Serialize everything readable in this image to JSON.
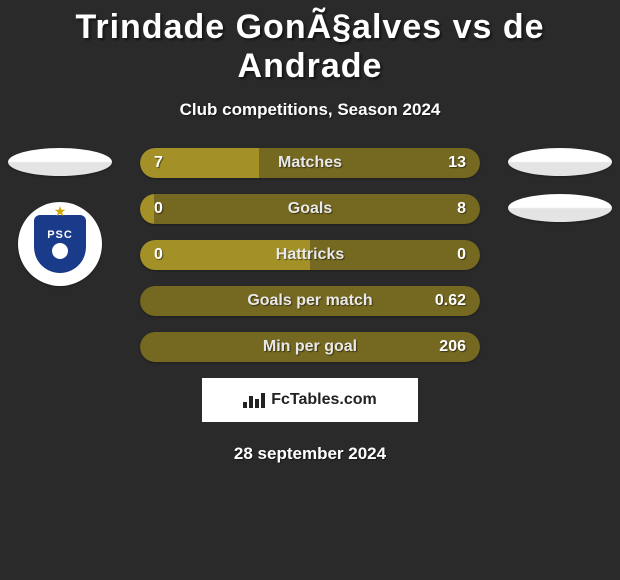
{
  "header": {
    "title": "Trindade GonÃ§alves vs de Andrade",
    "subtitle": "Club competitions, Season 2024"
  },
  "colors": {
    "left": "#a39128",
    "right": "#756820",
    "background": "#2a2a2a"
  },
  "stats": [
    {
      "label": "Matches",
      "left_val": "7",
      "right_val": "13",
      "left_pct": 35,
      "right_pct": 65
    },
    {
      "label": "Goals",
      "left_val": "0",
      "right_val": "8",
      "left_pct": 4,
      "right_pct": 96
    },
    {
      "label": "Hattricks",
      "left_val": "0",
      "right_val": "0",
      "left_pct": 50,
      "right_pct": 50
    },
    {
      "label": "Goals per match",
      "left_val": "",
      "right_val": "0.62",
      "left_pct": 0,
      "right_pct": 100
    },
    {
      "label": "Min per goal",
      "left_val": "",
      "right_val": "206",
      "left_pct": 0,
      "right_pct": 100
    }
  ],
  "footer": {
    "brand": "FcTables.com",
    "date": "28 september 2024"
  },
  "club_badge": {
    "text": "PSC"
  }
}
